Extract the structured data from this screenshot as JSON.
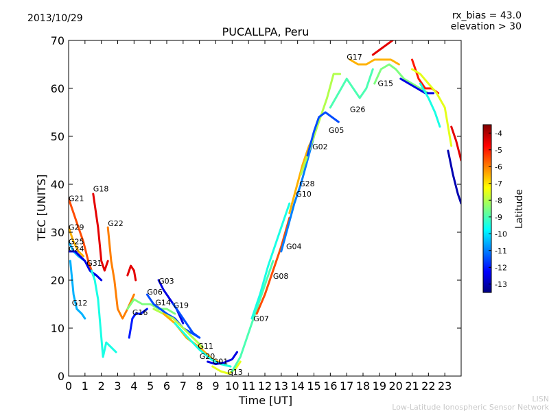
{
  "header": {
    "date": "2013/10/29",
    "rx_bias": "rx_bias = 43.0",
    "elevation": "elevation > 30"
  },
  "footer": {
    "line1": "LISN",
    "line2": "Low-Latitude Ionospheric Sensor Network"
  },
  "chart_data": {
    "type": "line",
    "title": "PUCALLPA, Peru",
    "xlabel": "Time [UT]",
    "ylabel": "TEC [UNITS]",
    "xlim": [
      0,
      24
    ],
    "ylim": [
      0,
      70
    ],
    "xticks": [
      "0",
      "1",
      "2",
      "3",
      "4",
      "5",
      "6",
      "7",
      "8",
      "9",
      "10",
      "11",
      "12",
      "13",
      "14",
      "15",
      "16",
      "17",
      "18",
      "19",
      "20",
      "21",
      "22",
      "23"
    ],
    "yticks": [
      "0",
      "10",
      "20",
      "30",
      "40",
      "50",
      "60",
      "70"
    ],
    "grid": false,
    "colorbar": {
      "label": "Latitude",
      "range": [
        -13.5,
        -3.5
      ],
      "ticks": [
        "-4",
        "-5",
        "-6",
        "-7",
        "-8",
        "-9",
        "-10",
        "-11",
        "-12",
        "-13"
      ],
      "colors": [
        "#00007f",
        "#0000ff",
        "#007fff",
        "#00ffff",
        "#7fff7f",
        "#ffff00",
        "#ff7f00",
        "#ff0000",
        "#7f0000"
      ]
    },
    "series": [
      {
        "name": "G21",
        "lat": -5.5,
        "points": [
          [
            0,
            37
          ],
          [
            0.3,
            34
          ],
          [
            0.6,
            31
          ],
          [
            0.9,
            28
          ],
          [
            1.2,
            24
          ],
          [
            1.5,
            21
          ]
        ]
      },
      {
        "name": "G18",
        "lat": -4.5,
        "points": [
          [
            1.5,
            38
          ],
          [
            1.8,
            31
          ],
          [
            2.0,
            24
          ],
          [
            2.2,
            22
          ],
          [
            2.4,
            24
          ]
        ]
      },
      {
        "name": "G29",
        "lat": -6.5,
        "points": [
          [
            0,
            31
          ],
          [
            0.3,
            28
          ],
          [
            0.6,
            26
          ],
          [
            0.9,
            25
          ]
        ]
      },
      {
        "name": "G25",
        "lat": -10.5,
        "points": [
          [
            0,
            28
          ],
          [
            0.3,
            26
          ],
          [
            0.6,
            25
          ],
          [
            1.0,
            24
          ],
          [
            1.3,
            22
          ],
          [
            1.6,
            21
          ]
        ]
      },
      {
        "name": "G24",
        "lat": -12.5,
        "points": [
          [
            0,
            26
          ],
          [
            0.4,
            26
          ],
          [
            0.7,
            25
          ],
          [
            1.0,
            24
          ],
          [
            1.3,
            22
          ],
          [
            1.7,
            21
          ],
          [
            2.0,
            20
          ]
        ]
      },
      {
        "name": "G31",
        "lat": -9.5,
        "points": [
          [
            1.4,
            22
          ],
          [
            1.6,
            20
          ],
          [
            1.8,
            16
          ],
          [
            2.0,
            8
          ],
          [
            2.1,
            4
          ],
          [
            2.3,
            7
          ],
          [
            2.6,
            6
          ],
          [
            2.9,
            5
          ]
        ]
      },
      {
        "name": "G22",
        "lat": -6.0,
        "points": [
          [
            2.4,
            31
          ],
          [
            2.6,
            24
          ],
          [
            2.8,
            20
          ],
          [
            3.0,
            14
          ],
          [
            3.3,
            12
          ],
          [
            3.6,
            14
          ],
          [
            4.0,
            17
          ]
        ]
      },
      {
        "name": "G12",
        "lat": -10.5,
        "points": [
          [
            0.1,
            24
          ],
          [
            0.3,
            17
          ],
          [
            0.5,
            14
          ],
          [
            0.8,
            13
          ],
          [
            1.0,
            12
          ]
        ]
      },
      {
        "name": "G16",
        "lat": -8.5,
        "points": [
          [
            3.6,
            14
          ],
          [
            4.0,
            16
          ],
          [
            4.5,
            15
          ],
          [
            5.0,
            15
          ],
          [
            5.5,
            14
          ],
          [
            6.0,
            14
          ],
          [
            6.5,
            13
          ]
        ]
      },
      {
        "name": "G06",
        "lat": -11.5,
        "points": [
          [
            4.8,
            17
          ],
          [
            5.2,
            15
          ],
          [
            5.6,
            14
          ],
          [
            6.0,
            13
          ],
          [
            6.5,
            12
          ],
          [
            7.0,
            10
          ],
          [
            7.5,
            9
          ],
          [
            8.0,
            8
          ]
        ]
      },
      {
        "name": "G03",
        "lat": -12.5,
        "points": [
          [
            5.5,
            20
          ],
          [
            5.8,
            18
          ],
          [
            6.2,
            16
          ],
          [
            6.6,
            14
          ],
          [
            7.0,
            11
          ]
        ]
      },
      {
        "name": "G14",
        "lat": -8.0,
        "points": [
          [
            5.2,
            14
          ],
          [
            5.8,
            13
          ],
          [
            6.4,
            12
          ],
          [
            7.0,
            10
          ],
          [
            7.6,
            8
          ],
          [
            8.2,
            6
          ]
        ]
      },
      {
        "name": "G19",
        "lat": -11.5,
        "points": [
          [
            6.4,
            15
          ],
          [
            6.8,
            13
          ],
          [
            7.2,
            11
          ],
          [
            7.6,
            9
          ],
          [
            8.0,
            8
          ]
        ]
      },
      {
        "name": "G11",
        "lat": -6.5,
        "points": [
          [
            5.8,
            13
          ],
          [
            6.5,
            11
          ],
          [
            7.2,
            8
          ],
          [
            8.0,
            6
          ],
          [
            8.8,
            3.5
          ],
          [
            9.5,
            2.5
          ]
        ]
      },
      {
        "name": "G20",
        "lat": -9.5,
        "points": [
          [
            6.5,
            11
          ],
          [
            7.3,
            8
          ],
          [
            8.0,
            5.5
          ],
          [
            8.7,
            3.5
          ],
          [
            9.3,
            2.5
          ],
          [
            9.9,
            2
          ]
        ]
      },
      {
        "name": "G01",
        "lat": -12.5,
        "points": [
          [
            8.5,
            3
          ],
          [
            9.0,
            2.5
          ],
          [
            9.5,
            2.8
          ],
          [
            10.0,
            3.5
          ],
          [
            10.3,
            5
          ]
        ]
      },
      {
        "name": "G13",
        "lat": -7.5,
        "points": [
          [
            8.8,
            2
          ],
          [
            9.3,
            1
          ],
          [
            9.8,
            0.5
          ],
          [
            10.2,
            1.5
          ],
          [
            10.5,
            3
          ]
        ]
      },
      {
        "name": "G07",
        "lat": -9.0,
        "points": [
          [
            10.0,
            1
          ],
          [
            10.5,
            4
          ],
          [
            11.0,
            9
          ],
          [
            11.5,
            14
          ],
          [
            12.0,
            19
          ],
          [
            12.5,
            24
          ]
        ]
      },
      {
        "name": "G08",
        "lat": -5.5,
        "points": [
          [
            11.5,
            13
          ],
          [
            12.0,
            17
          ],
          [
            12.5,
            22
          ],
          [
            13.0,
            27
          ],
          [
            13.5,
            33
          ]
        ]
      },
      {
        "name": "G04",
        "lat": -9.5,
        "points": [
          [
            11.2,
            12
          ],
          [
            11.7,
            17
          ],
          [
            12.2,
            23
          ],
          [
            12.6,
            27
          ],
          [
            13.0,
            31
          ],
          [
            13.5,
            36
          ]
        ]
      },
      {
        "name": "G10",
        "lat": -11.0,
        "points": [
          [
            13.0,
            26
          ],
          [
            13.4,
            31
          ],
          [
            13.8,
            36
          ],
          [
            14.2,
            40
          ],
          [
            14.6,
            45
          ],
          [
            15.0,
            50
          ]
        ]
      },
      {
        "name": "G28",
        "lat": -6.5,
        "points": [
          [
            13.5,
            34
          ],
          [
            13.9,
            39
          ],
          [
            14.3,
            44
          ],
          [
            14.7,
            48
          ],
          [
            15.0,
            50
          ]
        ]
      },
      {
        "name": "G02",
        "lat": -8.0,
        "points": [
          [
            14.2,
            42
          ],
          [
            14.6,
            46
          ],
          [
            15.0,
            50
          ],
          [
            15.4,
            54
          ],
          [
            15.8,
            58
          ],
          [
            16.2,
            63
          ],
          [
            16.6,
            63
          ]
        ]
      },
      {
        "name": "G05",
        "lat": -11.5,
        "points": [
          [
            14.6,
            46
          ],
          [
            15.0,
            51
          ],
          [
            15.3,
            54
          ],
          [
            15.7,
            55
          ],
          [
            16.1,
            54
          ],
          [
            16.5,
            53
          ]
        ]
      },
      {
        "name": "G26",
        "lat": -9.0,
        "points": [
          [
            16.0,
            56
          ],
          [
            16.5,
            59
          ],
          [
            17.0,
            62
          ],
          [
            17.4,
            60
          ],
          [
            17.8,
            58
          ],
          [
            18.2,
            60
          ],
          [
            18.6,
            64
          ]
        ]
      },
      {
        "name": "G17",
        "lat": -6.5,
        "points": [
          [
            17.2,
            66
          ],
          [
            17.7,
            65
          ],
          [
            18.2,
            65
          ],
          [
            18.7,
            66
          ],
          [
            19.2,
            66
          ],
          [
            19.7,
            66
          ],
          [
            20.2,
            65
          ]
        ]
      },
      {
        "name": "G15",
        "lat": -8.5,
        "points": [
          [
            18.7,
            61
          ],
          [
            19.1,
            64
          ],
          [
            19.6,
            65
          ],
          [
            20.0,
            64
          ],
          [
            20.5,
            62
          ],
          [
            21.0,
            61
          ],
          [
            21.5,
            60
          ],
          [
            22.0,
            59
          ]
        ]
      },
      {
        "name": "",
        "lat": -4.5,
        "points": [
          [
            18.6,
            67
          ],
          [
            19.0,
            68
          ],
          [
            19.4,
            69
          ],
          [
            19.8,
            70
          ]
        ]
      },
      {
        "name": "",
        "lat": -12.5,
        "points": [
          [
            20.3,
            62
          ],
          [
            20.8,
            61
          ],
          [
            21.3,
            60
          ],
          [
            21.8,
            59
          ],
          [
            22.3,
            59
          ]
        ]
      },
      {
        "name": "",
        "lat": -5.0,
        "points": [
          [
            21.0,
            66
          ],
          [
            21.4,
            62
          ],
          [
            21.8,
            60
          ],
          [
            22.2,
            60
          ],
          [
            22.6,
            59
          ]
        ]
      },
      {
        "name": "",
        "lat": -9.5,
        "points": [
          [
            21.5,
            61
          ],
          [
            22.0,
            58
          ],
          [
            22.4,
            55
          ],
          [
            22.7,
            52
          ]
        ]
      },
      {
        "name": "",
        "lat": -7.5,
        "points": [
          [
            21.0,
            64
          ],
          [
            21.5,
            63
          ],
          [
            22.0,
            61
          ],
          [
            22.5,
            59
          ],
          [
            23.0,
            56
          ],
          [
            23.4,
            48
          ]
        ]
      },
      {
        "name": "",
        "lat": -13.0,
        "points": [
          [
            23.2,
            47
          ],
          [
            23.5,
            42
          ],
          [
            23.8,
            38
          ],
          [
            24.0,
            36
          ]
        ]
      },
      {
        "name": "",
        "lat": -4.5,
        "points": [
          [
            23.4,
            52
          ],
          [
            23.7,
            49
          ],
          [
            24.0,
            45
          ]
        ]
      },
      {
        "name": "",
        "lat": -4.5,
        "points": [
          [
            3.6,
            21
          ],
          [
            3.8,
            23
          ],
          [
            4.0,
            22
          ],
          [
            4.1,
            20
          ]
        ]
      },
      {
        "name": "",
        "lat": -12.0,
        "points": [
          [
            3.7,
            8
          ],
          [
            3.9,
            12
          ],
          [
            4.1,
            13
          ],
          [
            4.4,
            13
          ],
          [
            4.8,
            14
          ]
        ]
      }
    ],
    "labels": [
      {
        "text": "G21",
        "x": 0.0,
        "y": 36.5
      },
      {
        "text": "G18",
        "x": 1.5,
        "y": 38.5
      },
      {
        "text": "G29",
        "x": 0.0,
        "y": 30.5
      },
      {
        "text": "G25",
        "x": 0.0,
        "y": 27.5
      },
      {
        "text": "G24",
        "x": 0.0,
        "y": 26.0
      },
      {
        "text": "G31",
        "x": 1.1,
        "y": 23.0
      },
      {
        "text": "G22",
        "x": 2.4,
        "y": 31.3
      },
      {
        "text": "G12",
        "x": 0.2,
        "y": 14.7
      },
      {
        "text": "G16",
        "x": 3.9,
        "y": 12.7
      },
      {
        "text": "G06",
        "x": 4.8,
        "y": 17.0
      },
      {
        "text": "G03",
        "x": 5.5,
        "y": 19.3
      },
      {
        "text": "G14",
        "x": 5.3,
        "y": 14.8
      },
      {
        "text": "G19",
        "x": 6.4,
        "y": 14.2
      },
      {
        "text": "G11",
        "x": 7.9,
        "y": 5.7
      },
      {
        "text": "G20",
        "x": 8.0,
        "y": 3.6
      },
      {
        "text": "G01",
        "x": 8.8,
        "y": 2.5
      },
      {
        "text": "G13",
        "x": 9.7,
        "y": 0.3
      },
      {
        "text": "G07",
        "x": 11.3,
        "y": 11.4
      },
      {
        "text": "G08",
        "x": 12.5,
        "y": 20.3
      },
      {
        "text": "G04",
        "x": 13.3,
        "y": 26.5
      },
      {
        "text": "G10",
        "x": 13.9,
        "y": 37.4
      },
      {
        "text": "G28",
        "x": 14.1,
        "y": 39.6
      },
      {
        "text": "G02",
        "x": 14.9,
        "y": 47.3
      },
      {
        "text": "G05",
        "x": 15.9,
        "y": 50.7
      },
      {
        "text": "G26",
        "x": 17.2,
        "y": 55.1
      },
      {
        "text": "G17",
        "x": 17.0,
        "y": 66.0
      },
      {
        "text": "G15",
        "x": 18.9,
        "y": 60.5
      }
    ]
  }
}
